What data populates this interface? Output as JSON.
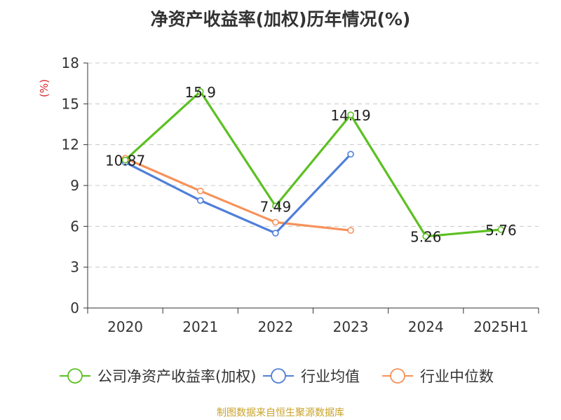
{
  "chart_data": {
    "type": "line",
    "title": "净资产收益率(加权)历年情况(%)",
    "ylabel": "(%)",
    "xlabel": "",
    "categories": [
      "2020",
      "2021",
      "2022",
      "2023",
      "2024",
      "2025H1"
    ],
    "ylim": [
      0,
      18
    ],
    "yticks": [
      0,
      3,
      6,
      9,
      12,
      15,
      18
    ],
    "grid": true,
    "legend_position": "bottom",
    "series": [
      {
        "name": "公司净资产收益率(加权)",
        "color": "#5cc022",
        "values": [
          10.87,
          15.9,
          7.49,
          14.19,
          5.26,
          5.76
        ],
        "labels": [
          "10.87",
          "15.9",
          "7.49",
          "14.19",
          "5.26",
          "5.76"
        ]
      },
      {
        "name": "行业均值",
        "color": "#4f7fd9",
        "values": [
          10.7,
          7.9,
          5.5,
          11.3,
          null,
          null
        ],
        "labels": null
      },
      {
        "name": "行业中位数",
        "color": "#f7925b",
        "values": [
          11.0,
          8.6,
          6.3,
          5.7,
          null,
          null
        ],
        "labels": null
      }
    ]
  },
  "footer": {
    "source": "制图数据来自恒生聚源数据库"
  }
}
